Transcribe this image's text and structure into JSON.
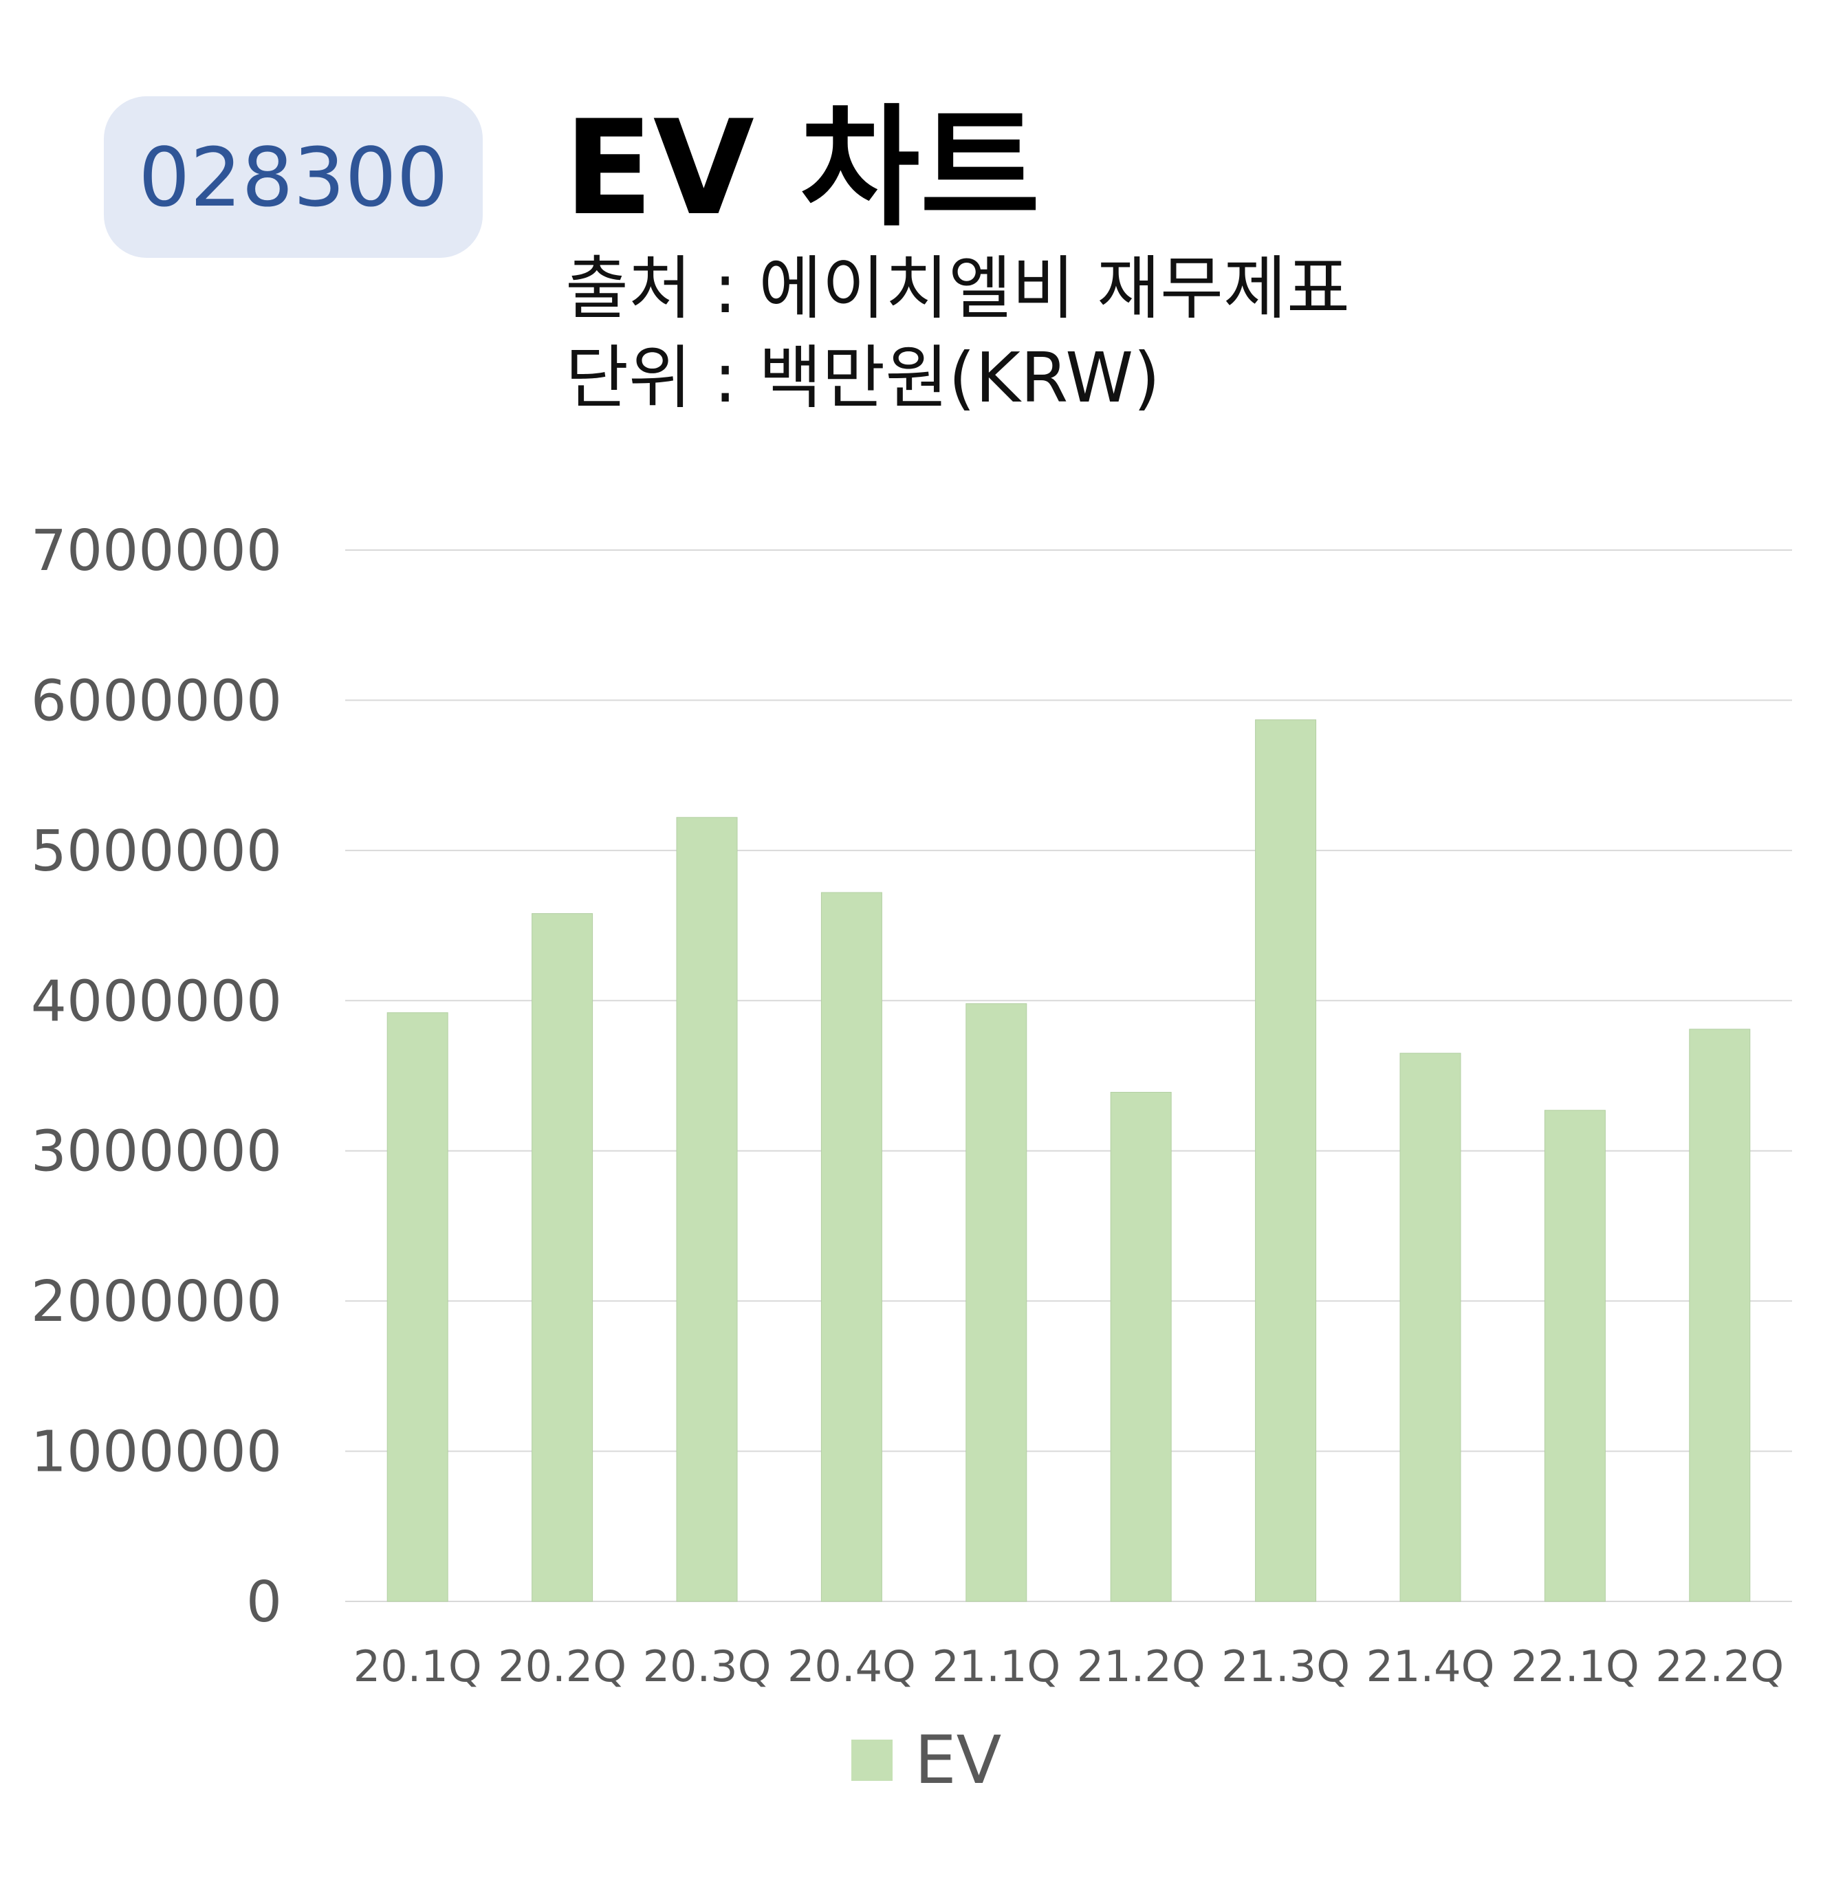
{
  "badge": {
    "code": "028300"
  },
  "header": {
    "title": "EV 차트",
    "source": "출처 : 에이치엘비 재무제표",
    "unit": "단위 : 백만원(KRW)"
  },
  "colors": {
    "bar": "#c5e0b4",
    "grid": "#d9d9d9",
    "tick_text": "#595959",
    "badge_bg": "#e3e9f5",
    "badge_text": "#2f5597"
  },
  "chart_data": {
    "type": "bar",
    "categories": [
      "20.1Q",
      "20.2Q",
      "20.3Q",
      "20.4Q",
      "21.1Q",
      "21.2Q",
      "21.3Q",
      "21.4Q",
      "22.1Q",
      "22.2Q"
    ],
    "series": [
      {
        "name": "EV",
        "values": [
          3920000,
          4580000,
          5220000,
          4720000,
          3980000,
          3390000,
          5870000,
          3650000,
          3270000,
          3810000
        ]
      }
    ],
    "ylim": [
      0,
      7000000
    ],
    "yticks": [
      "0",
      "1000000",
      "2000000",
      "3000000",
      "4000000",
      "5000000",
      "6000000",
      "7000000"
    ],
    "ytick_values": [
      0,
      1000000,
      2000000,
      3000000,
      4000000,
      5000000,
      6000000,
      7000000
    ],
    "grid": true,
    "legend": {
      "position": "bottom",
      "entries": [
        "EV"
      ]
    }
  }
}
